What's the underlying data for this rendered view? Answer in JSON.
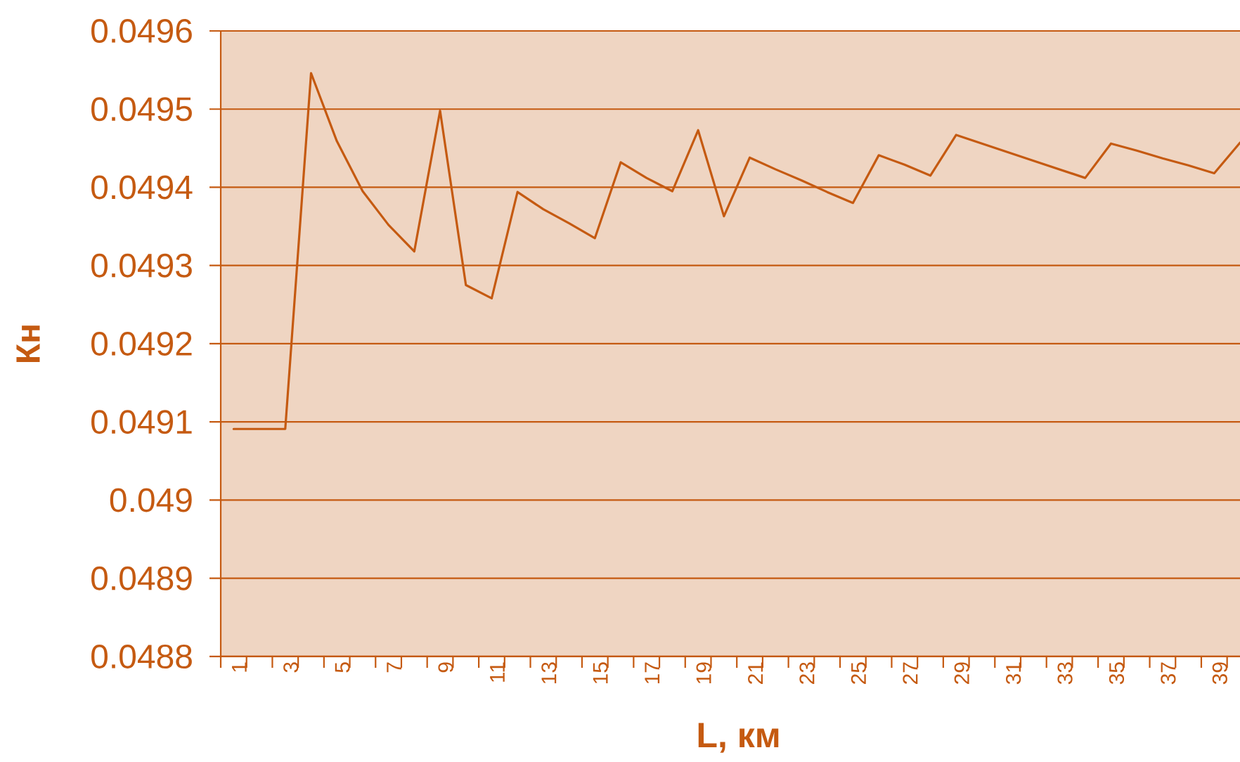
{
  "chart_data": {
    "type": "line",
    "xlabel": "L, км",
    "ylabel": "Кн",
    "categories": [
      "1",
      null,
      "3",
      null,
      "5",
      null,
      "7",
      null,
      "9",
      null,
      "11",
      null,
      "13",
      null,
      "15",
      null,
      "17",
      null,
      "19",
      null,
      "21",
      null,
      "23",
      null,
      "25",
      null,
      "27",
      null,
      "29",
      null,
      "31",
      null,
      "33",
      null,
      "35",
      null,
      "37",
      null,
      "39",
      null
    ],
    "values": [
      0.049091,
      0.049091,
      0.049091,
      0.049546,
      0.049459,
      0.049395,
      0.049352,
      0.049318,
      0.049498,
      0.049275,
      0.049258,
      0.049394,
      0.049372,
      0.049354,
      0.049335,
      0.049432,
      0.049412,
      0.049395,
      0.049473,
      0.049363,
      0.049438,
      0.049423,
      0.049409,
      0.049394,
      0.04938,
      0.049441,
      0.049429,
      0.049415,
      0.049467,
      0.049456,
      0.049445,
      0.049434,
      0.049423,
      0.049412,
      0.049456,
      0.049447,
      0.049437,
      0.049428,
      0.049418,
      0.049457
    ],
    "color": "#c55a11",
    "ylim": [
      0.0488,
      0.0496
    ],
    "yticks": [
      0.0488,
      0.0489,
      0.049,
      0.0491,
      0.0492,
      0.0493,
      0.0494,
      0.0495,
      0.0496
    ],
    "grid": "y",
    "marker": "none",
    "line_style": "solid"
  }
}
